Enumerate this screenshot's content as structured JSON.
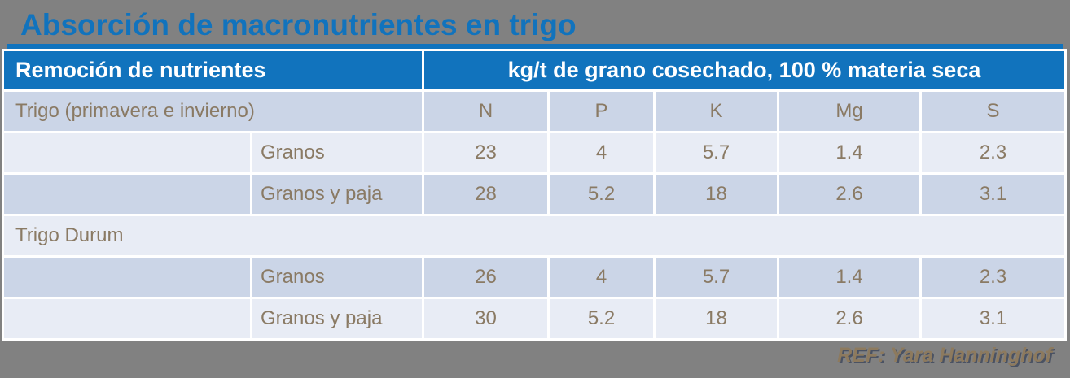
{
  "title": "Absorción de macronutrientes en trigo",
  "footer": {
    "ref": "REF: Yara Hanninghof"
  },
  "colors": {
    "accent_blue": "#1173bd",
    "row_medium": "#cbd5e7",
    "row_light": "#e8ecf5",
    "body_text": "#8a7a64",
    "background_gray": "#818181"
  },
  "table": {
    "header_left": "Remoción de nutrientes",
    "header_right": "kg/t de grano cosechado, 100 % materia seca",
    "nutrients": [
      "N",
      "P",
      "K",
      "Mg",
      "S"
    ],
    "sections": [
      {
        "name": "Trigo (primavera e invierno)",
        "rows": [
          {
            "label": "Granos",
            "values": [
              "23",
              "4",
              "5.7",
              "1.4",
              "2.3"
            ]
          },
          {
            "label": "Granos y paja",
            "values": [
              "28",
              "5.2",
              "18",
              "2.6",
              "3.1"
            ]
          }
        ]
      },
      {
        "name": "Trigo Durum",
        "rows": [
          {
            "label": "Granos",
            "values": [
              "26",
              "4",
              "5.7",
              "1.4",
              "2.3"
            ]
          },
          {
            "label": "Granos y paja",
            "values": [
              "30",
              "5.2",
              "18",
              "2.6",
              "3.1"
            ]
          }
        ]
      }
    ]
  },
  "chart_data": {
    "type": "table",
    "title": "Absorción de macronutrientes en trigo",
    "row_group_header": "Remoción de nutrientes",
    "unit_header": "kg/t de grano cosechado, 100 % materia seca",
    "columns": [
      "N",
      "P",
      "K",
      "Mg",
      "S"
    ],
    "rows": [
      {
        "group": "Trigo (primavera e invierno)",
        "label": "Granos",
        "N": 23,
        "P": 4,
        "K": 5.7,
        "Mg": 1.4,
        "S": 2.3
      },
      {
        "group": "Trigo (primavera e invierno)",
        "label": "Granos y paja",
        "N": 28,
        "P": 5.2,
        "K": 18,
        "Mg": 2.6,
        "S": 3.1
      },
      {
        "group": "Trigo Durum",
        "label": "Granos",
        "N": 26,
        "P": 4,
        "K": 5.7,
        "Mg": 1.4,
        "S": 2.3
      },
      {
        "group": "Trigo Durum",
        "label": "Granos y paja",
        "N": 30,
        "P": 5.2,
        "K": 18,
        "Mg": 2.6,
        "S": 3.1
      }
    ],
    "ref": "REF: Yara Hanninghof"
  }
}
